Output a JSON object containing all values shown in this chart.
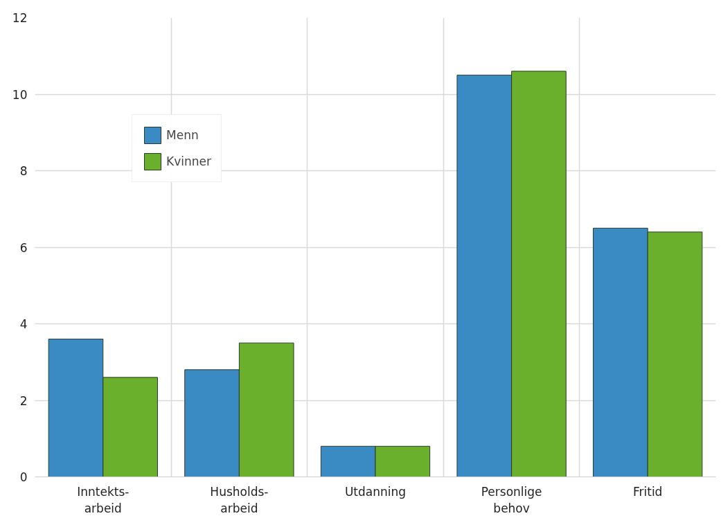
{
  "chart_data": {
    "type": "bar",
    "categories": [
      "Inntekts-\narbeid",
      "Husholds-\narbeid",
      "Utdanning",
      "Personlige\nbehov",
      "Fritid"
    ],
    "series": [
      {
        "name": "Menn",
        "color": "#3a8ac4",
        "values": [
          3.6,
          2.8,
          0.8,
          10.5,
          6.5
        ]
      },
      {
        "name": "Kvinner",
        "color": "#6ab02c",
        "values": [
          2.6,
          3.5,
          0.8,
          10.6,
          6.4
        ]
      }
    ],
    "ylim": [
      0,
      12
    ],
    "yticks": [
      0,
      2,
      4,
      6,
      8,
      10,
      12
    ],
    "grid": true,
    "legend": "top left"
  }
}
